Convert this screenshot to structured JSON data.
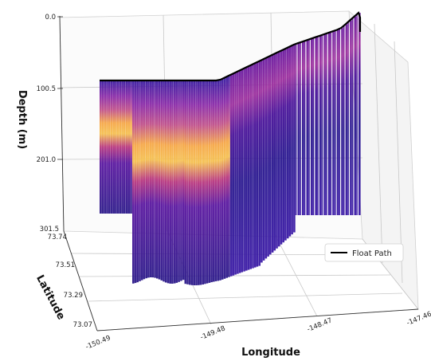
{
  "chart_data": {
    "type": "3d-curtain",
    "title": "",
    "xlabel": "Longitude",
    "ylabel": "Latitude",
    "zlabel": "Depth (m)",
    "x_ticks": [
      "-150.49",
      "-149.48",
      "-148.47",
      "-147.46"
    ],
    "y_ticks": [
      "73.74",
      "73.51",
      "73.29",
      "73.07"
    ],
    "z_ticks": [
      "0.0",
      "100.5",
      "201.0",
      "301.5"
    ],
    "xlim": [
      -150.49,
      -147.46
    ],
    "ylim": [
      73.07,
      73.74
    ],
    "zlim": [
      0.0,
      301.5
    ],
    "z_inverted": true,
    "colormap": "plasma",
    "grid": true,
    "legend": {
      "placement": "lower-right",
      "entries": [
        {
          "name": "Float Path",
          "color": "#000000"
        }
      ]
    },
    "float_path": {
      "lon": [
        -150.49,
        -150.1,
        -149.7,
        -149.48,
        -149.2,
        -148.9,
        -148.6,
        -148.3,
        -148.0,
        -147.7,
        -147.5
      ],
      "lat": [
        73.62,
        73.62,
        73.62,
        73.62,
        73.58,
        73.5,
        73.42,
        73.36,
        73.34,
        73.32,
        73.25
      ]
    },
    "profiles": {
      "count": 120,
      "max_depth": 301.5,
      "warm_layer_depth": [
        120,
        160
      ]
    }
  }
}
